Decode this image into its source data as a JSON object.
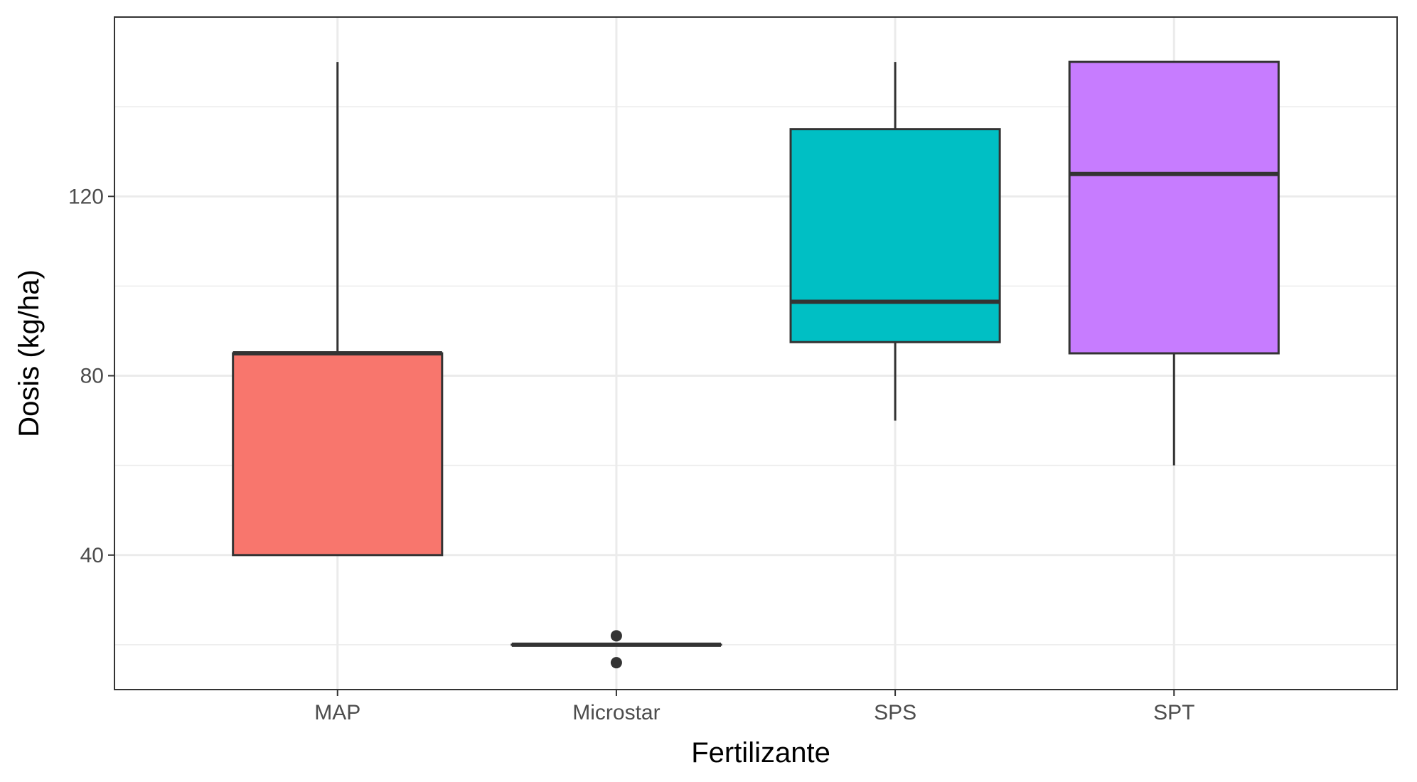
{
  "chart_data": {
    "type": "boxplot",
    "title": "",
    "xlabel": "Fertilizante",
    "ylabel": "Dosis (kg/ha)",
    "ylim": [
      10,
      160
    ],
    "yticks": [
      40,
      80,
      120
    ],
    "yminor": [
      20,
      60,
      100,
      140
    ],
    "grid": true,
    "categories": [
      "MAP",
      "Microstar",
      "SPS",
      "SPT"
    ],
    "boxes": [
      {
        "name": "MAP",
        "fill": "#F8766D",
        "whisker_low": 40,
        "q1": 40,
        "median": 85,
        "q3": 85,
        "whisker_high": 150,
        "outliers": []
      },
      {
        "name": "Microstar",
        "fill": "#7CAE00",
        "whisker_low": 20,
        "q1": 20,
        "median": 20,
        "q3": 20,
        "whisker_high": 20,
        "outliers": [
          22,
          16
        ]
      },
      {
        "name": "SPS",
        "fill": "#00BFC4",
        "whisker_low": 70,
        "q1": 87.5,
        "median": 96.5,
        "q3": 135,
        "whisker_high": 150,
        "outliers": []
      },
      {
        "name": "SPT",
        "fill": "#C77CFF",
        "whisker_low": 60,
        "q1": 85,
        "median": 125,
        "q3": 150,
        "whisker_high": 150,
        "outliers": []
      }
    ]
  }
}
